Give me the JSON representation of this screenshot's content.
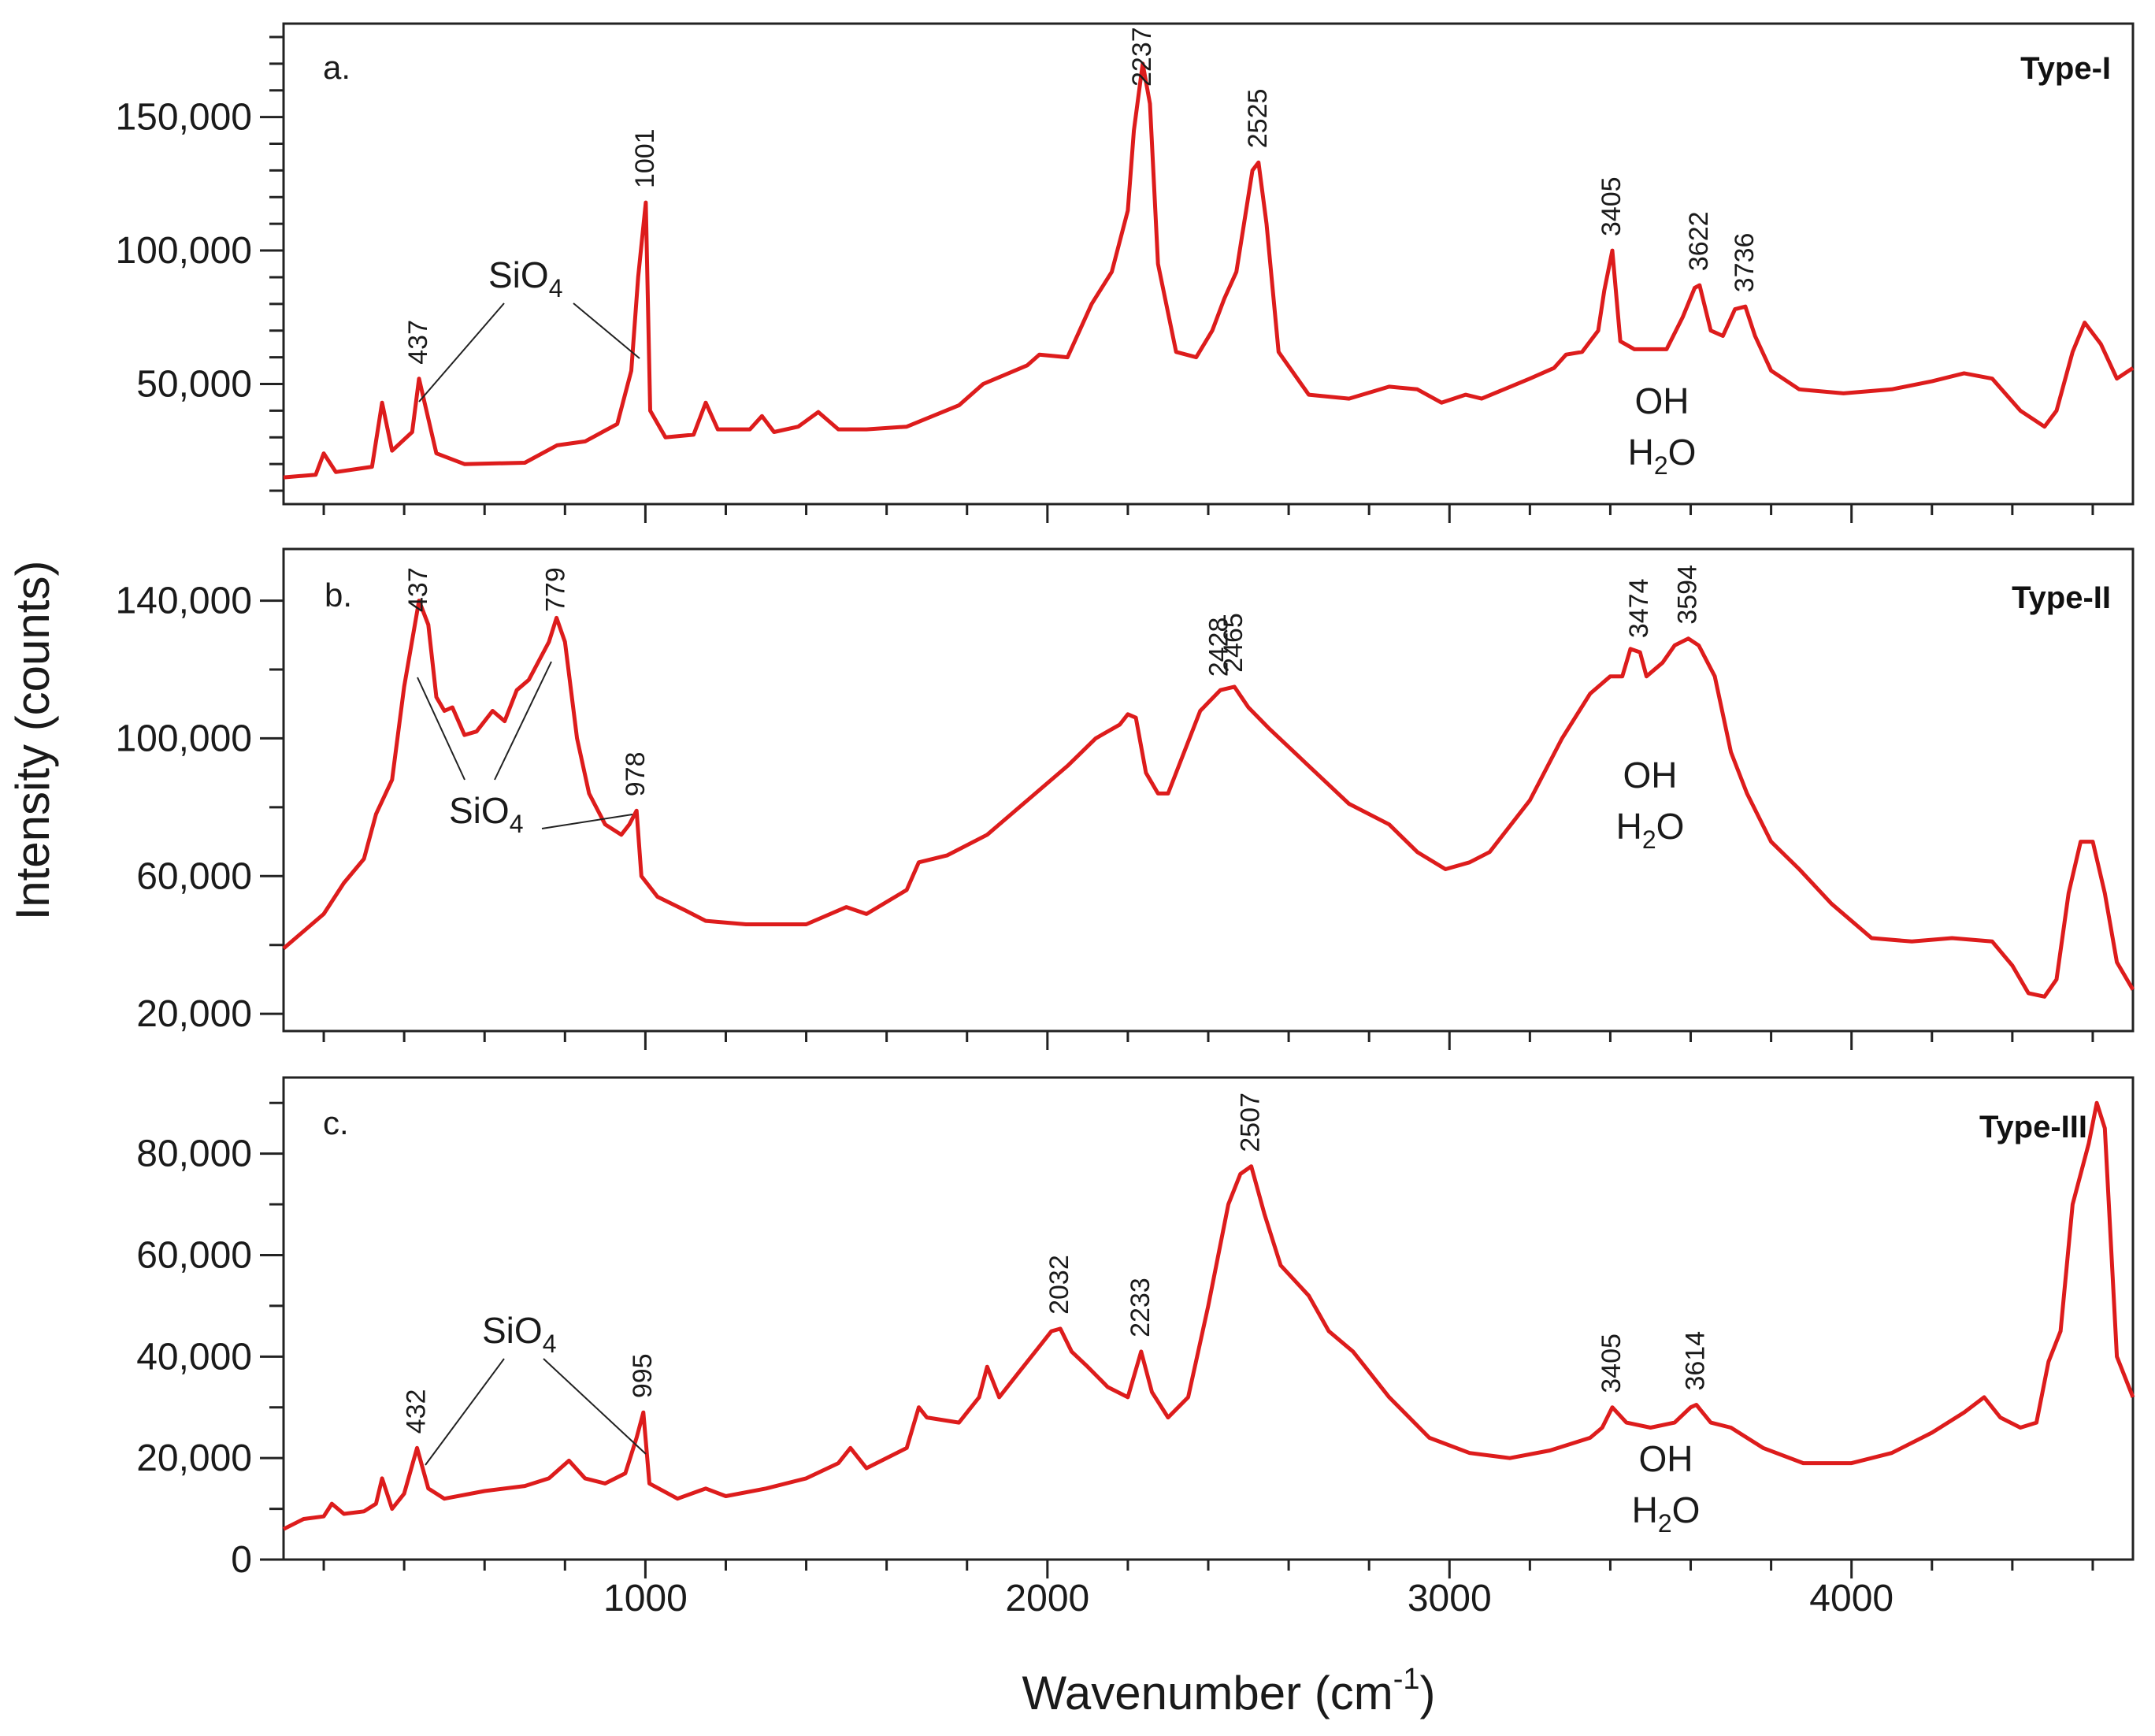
{
  "chart_data": {
    "type": "line",
    "xlabel": "Wavenumber (cm",
    "xlabel_superscript": "-1",
    "xlabel_close": ")",
    "ylabel": "Intensity (counts)",
    "xlim": [
      100,
      4700
    ],
    "x_ticks": [
      1000,
      2000,
      3000,
      4000
    ],
    "x_tick_labels": [
      "1000",
      "2000",
      "3000",
      "4000"
    ],
    "line_color": "#dd1c1c",
    "panels": [
      {
        "label": "a.",
        "type_label": "Type-I",
        "ylim": [
          5000,
          185000
        ],
        "y_ticks": [
          50000,
          100000,
          150000
        ],
        "y_tick_labels": [
          "50,000",
          "100,000",
          "150,000"
        ],
        "minor_y_step": 10000,
        "points": [
          [
            100,
            15000
          ],
          [
            180,
            16000
          ],
          [
            200,
            24000
          ],
          [
            230,
            17000
          ],
          [
            320,
            19000
          ],
          [
            345,
            43000
          ],
          [
            370,
            25000
          ],
          [
            420,
            32000
          ],
          [
            437,
            52000
          ],
          [
            480,
            24000
          ],
          [
            550,
            20000
          ],
          [
            700,
            20500
          ],
          [
            780,
            27000
          ],
          [
            850,
            28500
          ],
          [
            930,
            35000
          ],
          [
            965,
            55000
          ],
          [
            982,
            90000
          ],
          [
            1001,
            118000
          ],
          [
            1012,
            40000
          ],
          [
            1050,
            30000
          ],
          [
            1120,
            31000
          ],
          [
            1150,
            43000
          ],
          [
            1180,
            33000
          ],
          [
            1260,
            33000
          ],
          [
            1290,
            38000
          ],
          [
            1320,
            32000
          ],
          [
            1380,
            34000
          ],
          [
            1430,
            39500
          ],
          [
            1480,
            33000
          ],
          [
            1550,
            33000
          ],
          [
            1650,
            34000
          ],
          [
            1780,
            42000
          ],
          [
            1840,
            50000
          ],
          [
            1950,
            57000
          ],
          [
            1980,
            61000
          ],
          [
            2050,
            60000
          ],
          [
            2110,
            80000
          ],
          [
            2160,
            92000
          ],
          [
            2200,
            115000
          ],
          [
            2215,
            145000
          ],
          [
            2237,
            170000
          ],
          [
            2255,
            155000
          ],
          [
            2275,
            95000
          ],
          [
            2320,
            62000
          ],
          [
            2370,
            60000
          ],
          [
            2410,
            70000
          ],
          [
            2440,
            82000
          ],
          [
            2470,
            92000
          ],
          [
            2510,
            130000
          ],
          [
            2525,
            133000
          ],
          [
            2545,
            110000
          ],
          [
            2575,
            62000
          ],
          [
            2650,
            46000
          ],
          [
            2750,
            44500
          ],
          [
            2850,
            49000
          ],
          [
            2920,
            48000
          ],
          [
            2980,
            43000
          ],
          [
            3040,
            46000
          ],
          [
            3080,
            44500
          ],
          [
            3200,
            52000
          ],
          [
            3260,
            56000
          ],
          [
            3290,
            61000
          ],
          [
            3330,
            62000
          ],
          [
            3370,
            70000
          ],
          [
            3385,
            85000
          ],
          [
            3405,
            100000
          ],
          [
            3425,
            66000
          ],
          [
            3460,
            63000
          ],
          [
            3540,
            63000
          ],
          [
            3580,
            75000
          ],
          [
            3610,
            86000
          ],
          [
            3622,
            87000
          ],
          [
            3650,
            70000
          ],
          [
            3680,
            68000
          ],
          [
            3710,
            78000
          ],
          [
            3736,
            79000
          ],
          [
            3760,
            68000
          ],
          [
            3800,
            55000
          ],
          [
            3870,
            48000
          ],
          [
            3980,
            46500
          ],
          [
            4100,
            48000
          ],
          [
            4200,
            51000
          ],
          [
            4280,
            54000
          ],
          [
            4350,
            52000
          ],
          [
            4420,
            40000
          ],
          [
            4480,
            34000
          ],
          [
            4510,
            40000
          ],
          [
            4550,
            62000
          ],
          [
            4580,
            73000
          ],
          [
            4620,
            65000
          ],
          [
            4660,
            52000
          ],
          [
            4700,
            56000
          ]
        ],
        "peaks": [
          437,
          1001,
          2237,
          2525,
          3405,
          3622,
          3736
        ],
        "peak_labels": [
          "437",
          "1001",
          "2237",
          "2525",
          "3405",
          "3622",
          "3736"
        ],
        "sio4_label": "SiO",
        "sio4_subscript": "4",
        "oh_label": "OH",
        "h2o_label": "H",
        "h2o_subscript": "2",
        "h2o_tail": "O"
      },
      {
        "label": "b.",
        "type_label": "Type-II",
        "ylim": [
          15000,
          155000
        ],
        "y_ticks": [
          20000,
          60000,
          100000,
          140000
        ],
        "y_tick_labels": [
          "20,000",
          "60,000",
          "100,000",
          "140,000"
        ],
        "minor_y_step": 20000,
        "points": [
          [
            100,
            39000
          ],
          [
            200,
            49000
          ],
          [
            250,
            58000
          ],
          [
            300,
            65000
          ],
          [
            330,
            78000
          ],
          [
            370,
            88000
          ],
          [
            400,
            115000
          ],
          [
            437,
            140000
          ],
          [
            460,
            133000
          ],
          [
            480,
            112000
          ],
          [
            500,
            108000
          ],
          [
            520,
            109000
          ],
          [
            550,
            101000
          ],
          [
            580,
            102000
          ],
          [
            620,
            108000
          ],
          [
            650,
            105000
          ],
          [
            680,
            114000
          ],
          [
            710,
            117000
          ],
          [
            760,
            128000
          ],
          [
            779,
            135000
          ],
          [
            800,
            128000
          ],
          [
            830,
            100000
          ],
          [
            860,
            84000
          ],
          [
            900,
            75000
          ],
          [
            940,
            72000
          ],
          [
            960,
            75000
          ],
          [
            978,
            79000
          ],
          [
            990,
            60000
          ],
          [
            1030,
            54000
          ],
          [
            1100,
            50000
          ],
          [
            1150,
            47000
          ],
          [
            1250,
            46000
          ],
          [
            1400,
            46000
          ],
          [
            1500,
            51000
          ],
          [
            1550,
            49000
          ],
          [
            1650,
            56000
          ],
          [
            1680,
            64000
          ],
          [
            1750,
            66000
          ],
          [
            1850,
            72000
          ],
          [
            1950,
            82000
          ],
          [
            2050,
            92000
          ],
          [
            2120,
            100000
          ],
          [
            2180,
            104000
          ],
          [
            2200,
            107000
          ],
          [
            2220,
            106000
          ],
          [
            2245,
            90000
          ],
          [
            2275,
            84000
          ],
          [
            2300,
            84000
          ],
          [
            2330,
            93000
          ],
          [
            2380,
            108000
          ],
          [
            2430,
            114000
          ],
          [
            2465,
            115000
          ],
          [
            2500,
            109000
          ],
          [
            2550,
            103000
          ],
          [
            2650,
            92000
          ],
          [
            2750,
            81000
          ],
          [
            2850,
            75000
          ],
          [
            2920,
            67000
          ],
          [
            2990,
            62000
          ],
          [
            3050,
            64000
          ],
          [
            3100,
            67000
          ],
          [
            3200,
            82000
          ],
          [
            3280,
            100000
          ],
          [
            3350,
            113000
          ],
          [
            3400,
            118000
          ],
          [
            3430,
            118000
          ],
          [
            3450,
            126000
          ],
          [
            3474,
            125000
          ],
          [
            3490,
            118000
          ],
          [
            3530,
            122000
          ],
          [
            3560,
            127000
          ],
          [
            3594,
            129000
          ],
          [
            3620,
            127000
          ],
          [
            3660,
            118000
          ],
          [
            3700,
            96000
          ],
          [
            3740,
            84000
          ],
          [
            3800,
            70000
          ],
          [
            3870,
            62000
          ],
          [
            3950,
            52000
          ],
          [
            4050,
            42000
          ],
          [
            4150,
            41000
          ],
          [
            4250,
            42000
          ],
          [
            4350,
            41000
          ],
          [
            4400,
            34000
          ],
          [
            4440,
            26000
          ],
          [
            4480,
            25000
          ],
          [
            4510,
            30000
          ],
          [
            4540,
            55000
          ],
          [
            4570,
            70000
          ],
          [
            4600,
            70000
          ],
          [
            4630,
            55000
          ],
          [
            4660,
            35000
          ],
          [
            4700,
            27000
          ]
        ],
        "peaks": [
          437,
          779,
          978,
          2428,
          2465,
          3474,
          3594
        ],
        "peak_labels": [
          "437",
          "779",
          "978",
          "2428",
          "2465",
          "3474",
          "3594"
        ],
        "sio4_label": "SiO",
        "sio4_subscript": "4",
        "oh_label": "OH",
        "h2o_label": "H",
        "h2o_subscript": "2",
        "h2o_tail": "O"
      },
      {
        "label": "c.",
        "type_label": "Type-III",
        "ylim": [
          0,
          95000
        ],
        "y_ticks": [
          0,
          20000,
          40000,
          60000,
          80000
        ],
        "y_tick_labels": [
          "0",
          "20,000",
          "40,000",
          "60,000",
          "80,000"
        ],
        "minor_y_step": 10000,
        "points": [
          [
            100,
            6000
          ],
          [
            150,
            8000
          ],
          [
            200,
            8500
          ],
          [
            220,
            11000
          ],
          [
            250,
            9000
          ],
          [
            300,
            9500
          ],
          [
            330,
            11000
          ],
          [
            345,
            16000
          ],
          [
            370,
            10000
          ],
          [
            400,
            13000
          ],
          [
            432,
            22000
          ],
          [
            460,
            14000
          ],
          [
            500,
            12000
          ],
          [
            600,
            13500
          ],
          [
            700,
            14500
          ],
          [
            760,
            16000
          ],
          [
            810,
            19500
          ],
          [
            850,
            16000
          ],
          [
            900,
            15000
          ],
          [
            950,
            17000
          ],
          [
            978,
            24000
          ],
          [
            995,
            29000
          ],
          [
            1010,
            15000
          ],
          [
            1080,
            12000
          ],
          [
            1150,
            14000
          ],
          [
            1200,
            12500
          ],
          [
            1300,
            14000
          ],
          [
            1400,
            16000
          ],
          [
            1480,
            19000
          ],
          [
            1510,
            22000
          ],
          [
            1550,
            18000
          ],
          [
            1650,
            22000
          ],
          [
            1680,
            30000
          ],
          [
            1700,
            28000
          ],
          [
            1780,
            27000
          ],
          [
            1830,
            32000
          ],
          [
            1850,
            38000
          ],
          [
            1880,
            32000
          ],
          [
            1930,
            37000
          ],
          [
            1980,
            42000
          ],
          [
            2010,
            45000
          ],
          [
            2032,
            45500
          ],
          [
            2060,
            41000
          ],
          [
            2100,
            38000
          ],
          [
            2150,
            34000
          ],
          [
            2200,
            32000
          ],
          [
            2233,
            41000
          ],
          [
            2260,
            33000
          ],
          [
            2300,
            28000
          ],
          [
            2350,
            32000
          ],
          [
            2400,
            50000
          ],
          [
            2450,
            70000
          ],
          [
            2480,
            76000
          ],
          [
            2507,
            77500
          ],
          [
            2540,
            68000
          ],
          [
            2580,
            58000
          ],
          [
            2650,
            52000
          ],
          [
            2700,
            45000
          ],
          [
            2760,
            41000
          ],
          [
            2790,
            38000
          ],
          [
            2850,
            32000
          ],
          [
            2950,
            24000
          ],
          [
            3050,
            21000
          ],
          [
            3150,
            20000
          ],
          [
            3250,
            21500
          ],
          [
            3350,
            24000
          ],
          [
            3380,
            26000
          ],
          [
            3405,
            30000
          ],
          [
            3440,
            27000
          ],
          [
            3500,
            26000
          ],
          [
            3560,
            27000
          ],
          [
            3600,
            30000
          ],
          [
            3614,
            30500
          ],
          [
            3650,
            27000
          ],
          [
            3700,
            26000
          ],
          [
            3780,
            22000
          ],
          [
            3880,
            19000
          ],
          [
            4000,
            19000
          ],
          [
            4100,
            21000
          ],
          [
            4200,
            25000
          ],
          [
            4280,
            29000
          ],
          [
            4330,
            32000
          ],
          [
            4370,
            28000
          ],
          [
            4420,
            26000
          ],
          [
            4460,
            27000
          ],
          [
            4490,
            39000
          ],
          [
            4520,
            45000
          ],
          [
            4550,
            70000
          ],
          [
            4590,
            82000
          ],
          [
            4610,
            90000
          ],
          [
            4630,
            85000
          ],
          [
            4660,
            40000
          ],
          [
            4700,
            32000
          ]
        ],
        "peaks": [
          432,
          995,
          2032,
          2233,
          2507,
          3405,
          3614
        ],
        "peak_labels": [
          "432",
          "995",
          "2032",
          "2233",
          "2507",
          "3405",
          "3614"
        ],
        "sio4_label": "SiO",
        "sio4_subscript": "4",
        "oh_label": "OH",
        "h2o_label": "H",
        "h2o_subscript": "2",
        "h2o_tail": "O"
      }
    ]
  }
}
